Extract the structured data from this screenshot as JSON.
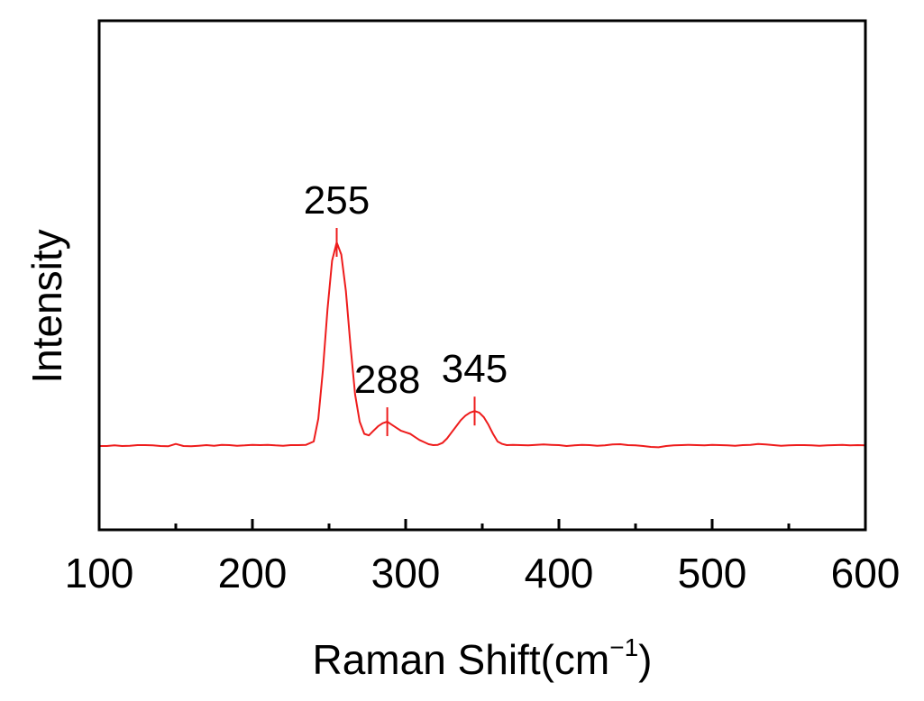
{
  "chart_data": {
    "type": "line",
    "title": "",
    "xlabel": "Raman Shift(cm",
    "xlabel_sup": "−1",
    "xlabel_close": ")",
    "ylabel": "Intensity",
    "xlim": [
      100,
      600
    ],
    "ylim": [
      0,
      1
    ],
    "x_ticks": [
      "100",
      "200",
      "300",
      "400",
      "500",
      "600"
    ],
    "x_minor_ticks": [
      150,
      250,
      350,
      450,
      550
    ],
    "y_ticks_shown": false,
    "grid": false,
    "legend": "none",
    "color": "#ee1c1c",
    "series": [
      {
        "x": [
          100,
          105,
          110,
          115,
          120,
          125,
          130,
          135,
          140,
          145,
          150,
          155,
          160,
          165,
          170,
          175,
          180,
          185,
          190,
          195,
          200,
          205,
          210,
          215,
          220,
          225,
          230,
          235,
          240,
          243,
          246,
          249,
          252,
          255,
          258,
          261,
          264,
          267,
          270,
          273,
          276,
          279,
          282,
          285,
          288,
          291,
          294,
          297,
          300,
          303,
          306,
          309,
          312,
          315,
          318,
          321,
          324,
          327,
          330,
          333,
          336,
          339,
          342,
          345,
          348,
          351,
          354,
          357,
          360,
          363,
          366,
          370,
          375,
          380,
          385,
          390,
          395,
          400,
          405,
          410,
          415,
          420,
          425,
          430,
          435,
          440,
          445,
          450,
          455,
          460,
          465,
          470,
          475,
          480,
          485,
          490,
          495,
          500,
          505,
          510,
          515,
          520,
          525,
          530,
          535,
          540,
          545,
          550,
          555,
          560,
          565,
          570,
          575,
          580,
          585,
          590,
          595,
          600
        ],
        "y": [
          0.33,
          0.33,
          0.332,
          0.33,
          0.331,
          0.333,
          0.333,
          0.332,
          0.33,
          0.329,
          0.337,
          0.33,
          0.329,
          0.331,
          0.333,
          0.331,
          0.334,
          0.333,
          0.331,
          0.332,
          0.334,
          0.333,
          0.334,
          0.332,
          0.331,
          0.333,
          0.333,
          0.334,
          0.345,
          0.42,
          0.58,
          0.78,
          0.94,
          1.0,
          0.96,
          0.84,
          0.66,
          0.5,
          0.41,
          0.37,
          0.365,
          0.38,
          0.395,
          0.405,
          0.41,
          0.4,
          0.39,
          0.38,
          0.375,
          0.37,
          0.36,
          0.35,
          0.343,
          0.336,
          0.333,
          0.334,
          0.34,
          0.355,
          0.375,
          0.395,
          0.415,
          0.43,
          0.44,
          0.445,
          0.44,
          0.425,
          0.4,
          0.37,
          0.345,
          0.337,
          0.333,
          0.334,
          0.333,
          0.332,
          0.334,
          0.335,
          0.334,
          0.333,
          0.33,
          0.332,
          0.334,
          0.333,
          0.331,
          0.332,
          0.335,
          0.336,
          0.333,
          0.332,
          0.33,
          0.327,
          0.326,
          0.33,
          0.332,
          0.333,
          0.334,
          0.333,
          0.332,
          0.334,
          0.333,
          0.332,
          0.331,
          0.333,
          0.334,
          0.337,
          0.335,
          0.333,
          0.331,
          0.332,
          0.333,
          0.333,
          0.332,
          0.331,
          0.332,
          0.333,
          0.334,
          0.332,
          0.333,
          0.332
        ]
      }
    ],
    "annotations": [
      {
        "text": "255",
        "x": 255,
        "y": 1.0
      },
      {
        "text": "288",
        "x": 288,
        "y": 0.41
      },
      {
        "text": "345",
        "x": 345,
        "y": 0.445
      }
    ]
  }
}
